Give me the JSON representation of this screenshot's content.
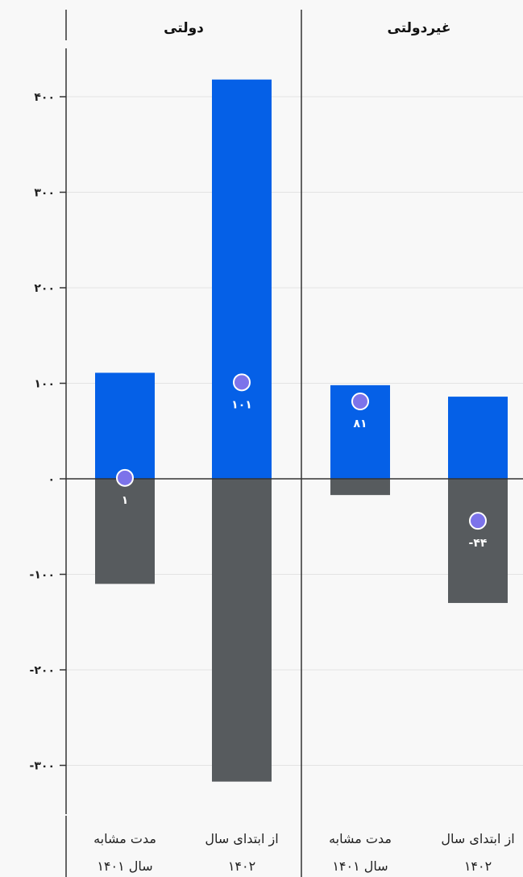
{
  "chart_data": {
    "type": "bar",
    "stacked": true,
    "ylim": [
      -360,
      420
    ],
    "yticks": [
      400,
      300,
      200,
      100,
      0,
      -100,
      -200,
      -300
    ],
    "ytick_labels": [
      "۴۰۰",
      "۳۰۰",
      "۲۰۰",
      "۱۰۰",
      "۰",
      "-۱۰۰",
      "-۲۰۰",
      "-۳۰۰"
    ],
    "grid": true,
    "colors": {
      "positive": "#0560e7",
      "negative": "#575b5e",
      "net_marker": "#7c73ea"
    },
    "panels": [
      {
        "title": "دولتی",
        "bars": [
          {
            "label_line1": "مدت مشابه",
            "label_line2": "سال ۱۴۰۱",
            "positive": 111,
            "negative": -110,
            "net": 1,
            "net_label": "۱"
          },
          {
            "label_line1": "از ابتدای سال",
            "label_line2": "۱۴۰۲",
            "positive": 418,
            "negative": -317,
            "net": 101,
            "net_label": "۱۰۱"
          }
        ]
      },
      {
        "title": "غیردولتی",
        "bars": [
          {
            "label_line1": "مدت مشابه",
            "label_line2": "سال ۱۴۰۱",
            "positive": 98,
            "negative": -17,
            "net": 81,
            "net_label": "۸۱"
          },
          {
            "label_line1": "از ابتدای سال",
            "label_line2": "۱۴۰۲",
            "positive": 86,
            "negative": -130,
            "net": -44,
            "net_label": "-۴۴"
          }
        ]
      }
    ]
  }
}
